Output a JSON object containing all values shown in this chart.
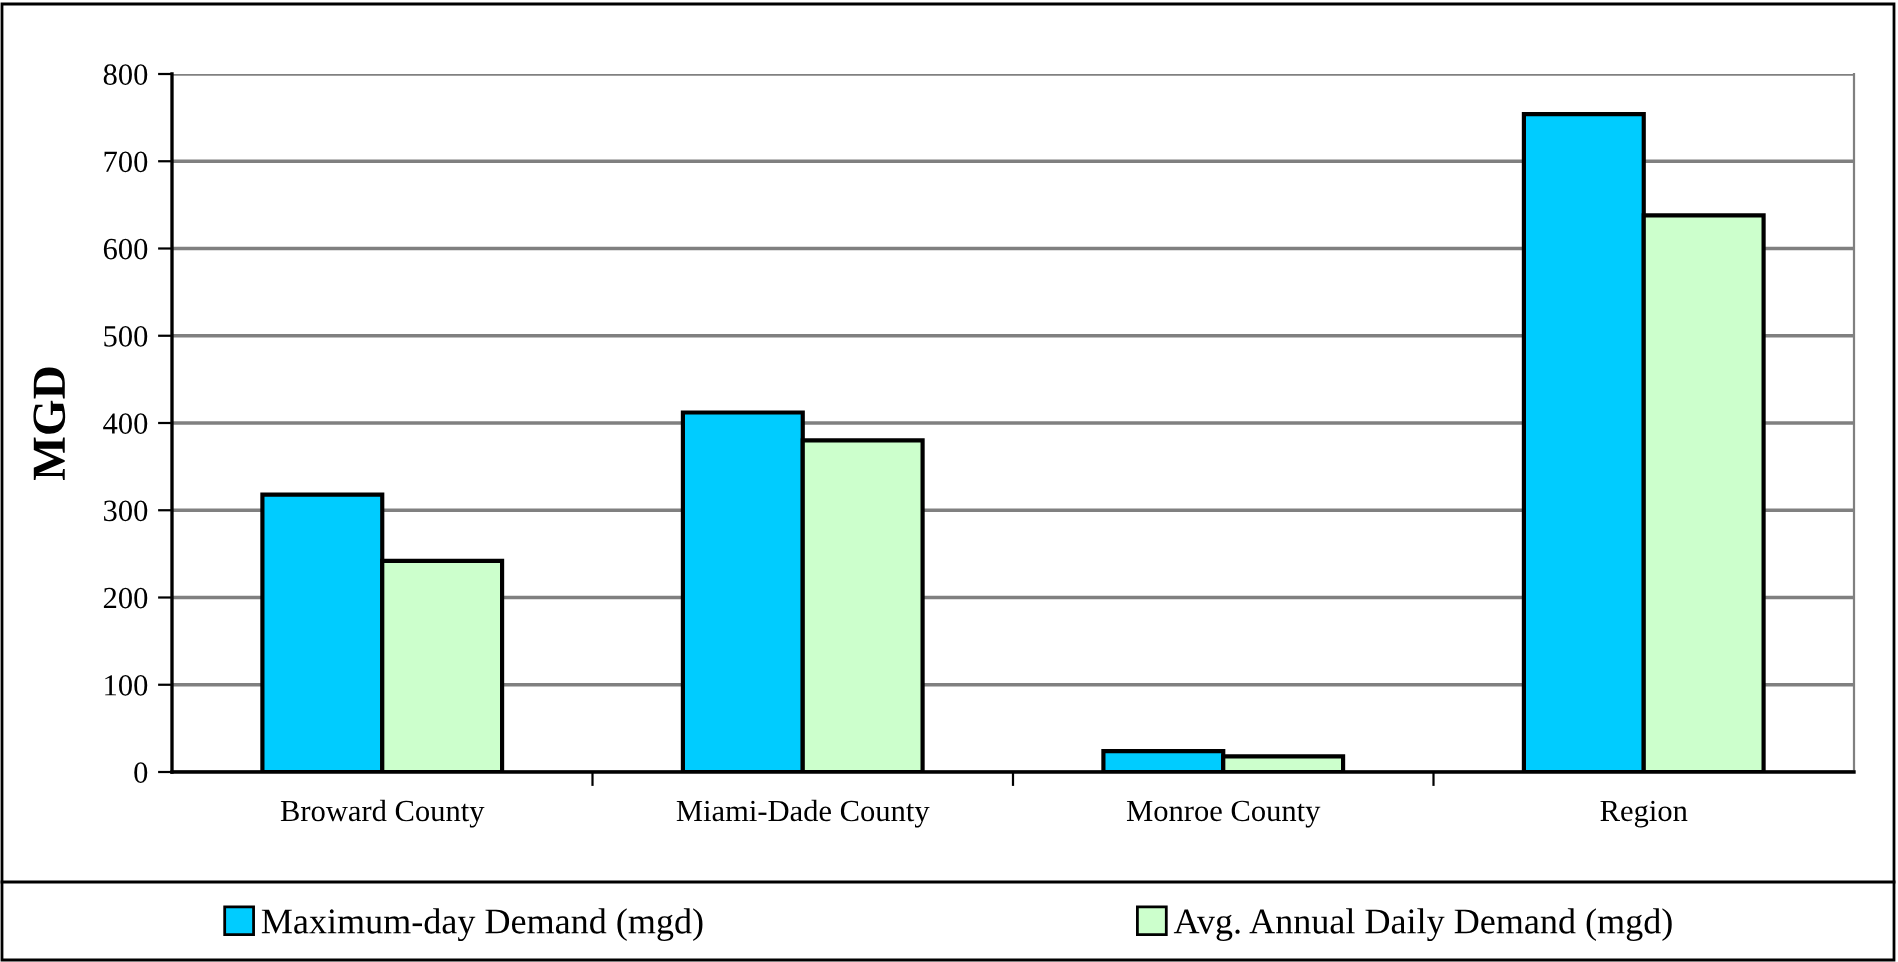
{
  "chart_data": {
    "type": "bar",
    "ylabel": "MGD",
    "categories": [
      "Broward County",
      "Miami-Dade County",
      "Monroe County",
      "Region"
    ],
    "series": [
      {
        "name": "Maximum-day Demand (mgd)",
        "color": "#00ccff",
        "values": [
          318,
          412,
          24,
          754
        ]
      },
      {
        "name": "Avg. Annual Daily Demand (mgd)",
        "color": "#ccffcc",
        "values": [
          242,
          380,
          18,
          638
        ]
      }
    ],
    "ylim": [
      0,
      800
    ],
    "yticks": [
      0,
      100,
      200,
      300,
      400,
      500,
      600,
      700,
      800
    ],
    "grid": "y",
    "legend": "bottom"
  }
}
